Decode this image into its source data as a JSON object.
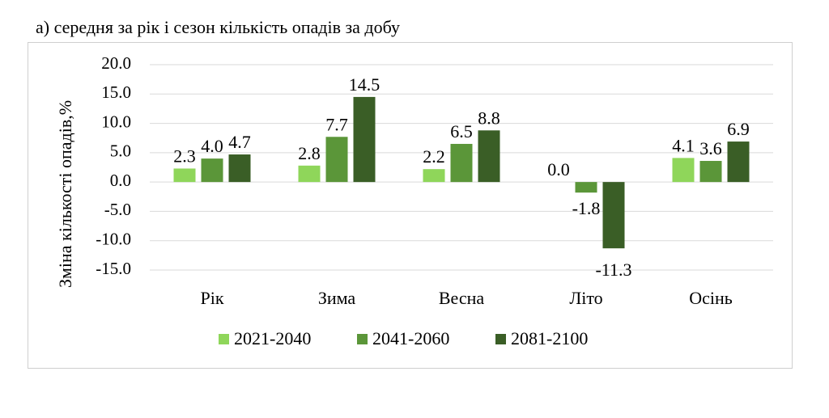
{
  "title": "а) середня за рік і сезон кількість опадів за добу",
  "colors": {
    "2021-2040": "#8fd65a",
    "2041-2060": "#5b9639",
    "2081-2100": "#3a5e26",
    "grid": "#d9d9d9"
  },
  "chart_data": {
    "type": "bar",
    "ylabel": "Зміна кількості опадів,%",
    "ylim": [
      -15,
      20
    ],
    "yticks": [
      "20.0",
      "15.0",
      "10.0",
      "5.0",
      "0.0",
      "-5.0",
      "-10.0",
      "-15.0"
    ],
    "categories": [
      "Рік",
      "Зима",
      "Весна",
      "Літо",
      "Осінь"
    ],
    "series": [
      {
        "name": "2021-2040",
        "values": [
          2.3,
          2.8,
          2.2,
          0.0,
          4.1
        ],
        "labels": [
          "2.3",
          "2.8",
          "2.2",
          "0.0",
          "4.1"
        ]
      },
      {
        "name": "2041-2060",
        "values": [
          4.0,
          7.7,
          6.5,
          -1.8,
          3.6
        ],
        "labels": [
          "4.0",
          "7.7",
          "6.5",
          "-1.8",
          "3.6"
        ]
      },
      {
        "name": "2081-2100",
        "values": [
          4.7,
          14.5,
          8.8,
          -11.3,
          6.9
        ],
        "labels": [
          "4.7",
          "14.5",
          "8.8",
          "-11.3",
          "6.9"
        ]
      }
    ],
    "grid": true,
    "legend": "bottom"
  }
}
